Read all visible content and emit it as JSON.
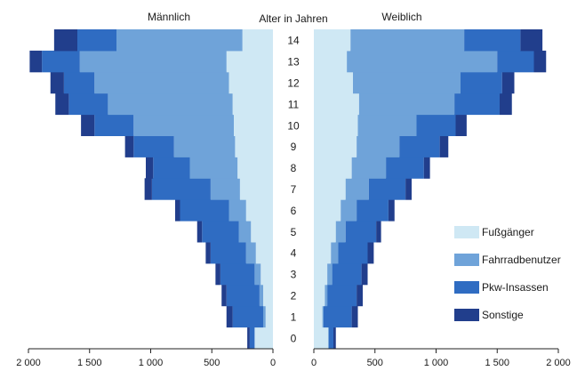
{
  "colors": {
    "fussgaenger": "#cfe8f4",
    "fahrrad": "#6fa3d9",
    "pkw": "#2f6cc2",
    "sonstige": "#213e8c",
    "axis": "#222222"
  },
  "chart_data": {
    "type": "bar",
    "orientation": "horizontal-population-pyramid",
    "title": "",
    "left_label": "Männlich",
    "right_label": "Weiblich",
    "center_label": "Alter in Jahren",
    "categories": [
      "0",
      "1",
      "2",
      "3",
      "4",
      "5",
      "6",
      "7",
      "8",
      "9",
      "10",
      "11",
      "12",
      "13",
      "14"
    ],
    "x_ticks_left": [
      "2 000",
      "1 500",
      "1 000",
      "500",
      "0"
    ],
    "x_ticks_right": [
      "0",
      "500",
      "1 000",
      "1 500",
      "2 000"
    ],
    "xlim": [
      0,
      2000
    ],
    "legend": [
      "Fußgänger",
      "Fahrradbenutzer",
      "Pkw-Insassen",
      "Sonstige"
    ],
    "legend_position": "right",
    "stacked": true,
    "male": {
      "series": [
        {
          "name": "Fußgänger",
          "values": [
            150,
            60,
            80,
            100,
            140,
            180,
            220,
            270,
            290,
            310,
            320,
            330,
            360,
            380,
            250
          ]
        },
        {
          "name": "Fahrradbenutzer",
          "values": [
            0,
            20,
            30,
            50,
            80,
            100,
            140,
            240,
            390,
            500,
            820,
            1020,
            1100,
            1200,
            1030
          ]
        },
        {
          "name": "Pkw-Insassen",
          "values": [
            40,
            250,
            270,
            280,
            290,
            300,
            400,
            480,
            300,
            330,
            320,
            320,
            250,
            310,
            320
          ]
        },
        {
          "name": "Sonstige",
          "values": [
            20,
            50,
            40,
            40,
            40,
            40,
            40,
            60,
            60,
            70,
            110,
            110,
            110,
            100,
            190
          ]
        }
      ],
      "totals": [
        210,
        380,
        420,
        470,
        550,
        620,
        800,
        1050,
        1040,
        1210,
        1570,
        1780,
        1820,
        1990,
        1790
      ]
    },
    "female": {
      "series": [
        {
          "name": "Fußgänger",
          "values": [
            120,
            70,
            90,
            110,
            140,
            180,
            220,
            260,
            310,
            350,
            360,
            370,
            320,
            270,
            300
          ]
        },
        {
          "name": "Fahrradbenutzer",
          "values": [
            0,
            10,
            20,
            40,
            60,
            80,
            130,
            190,
            280,
            350,
            480,
            780,
            880,
            1230,
            930
          ]
        },
        {
          "name": "Pkw-Insassen",
          "values": [
            40,
            230,
            240,
            240,
            240,
            250,
            260,
            300,
            310,
            330,
            320,
            370,
            340,
            300,
            460
          ]
        },
        {
          "name": "Sonstige",
          "values": [
            20,
            50,
            50,
            50,
            50,
            40,
            50,
            50,
            50,
            70,
            90,
            100,
            100,
            100,
            180
          ]
        }
      ],
      "totals": [
        180,
        360,
        400,
        440,
        490,
        550,
        660,
        800,
        950,
        1100,
        1250,
        1620,
        1640,
        1900,
        1870
      ]
    }
  }
}
